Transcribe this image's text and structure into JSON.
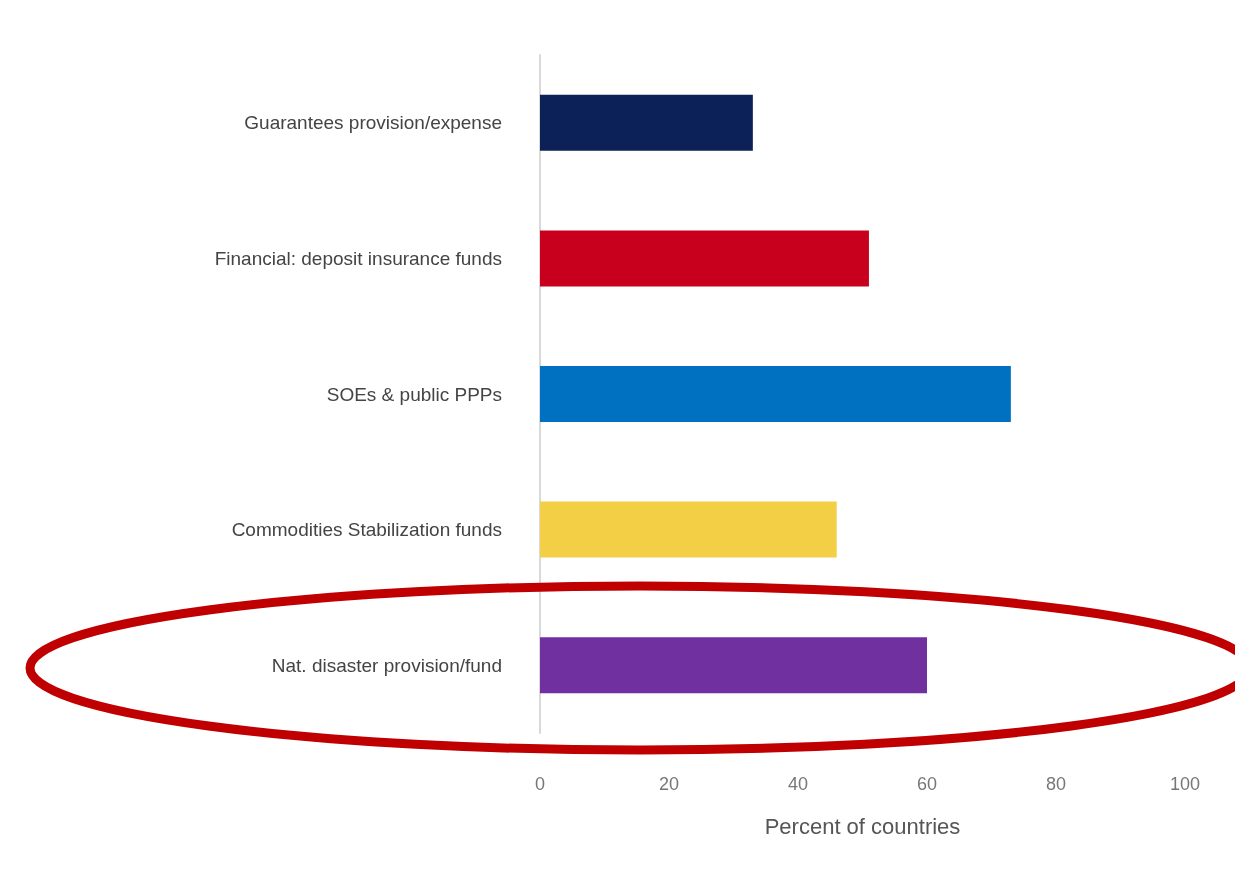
{
  "chart_data": {
    "type": "bar",
    "orientation": "horizontal",
    "xlabel": "Percent of countries",
    "categories": [
      "Guarantees provision/expense",
      "Financial: deposit insurance funds",
      "SOEs & public PPPs",
      "Commodities Stabilization funds",
      "Nat. disaster provision/fund"
    ],
    "values": [
      33,
      51,
      73,
      46,
      60
    ],
    "colors": [
      "#0b2157",
      "#c8001e",
      "#0070c0",
      "#f2cf45",
      "#7030a0"
    ],
    "xlim": [
      0,
      100
    ],
    "xticks": [
      0,
      20,
      40,
      60,
      80,
      100
    ],
    "grid": false
  }
}
